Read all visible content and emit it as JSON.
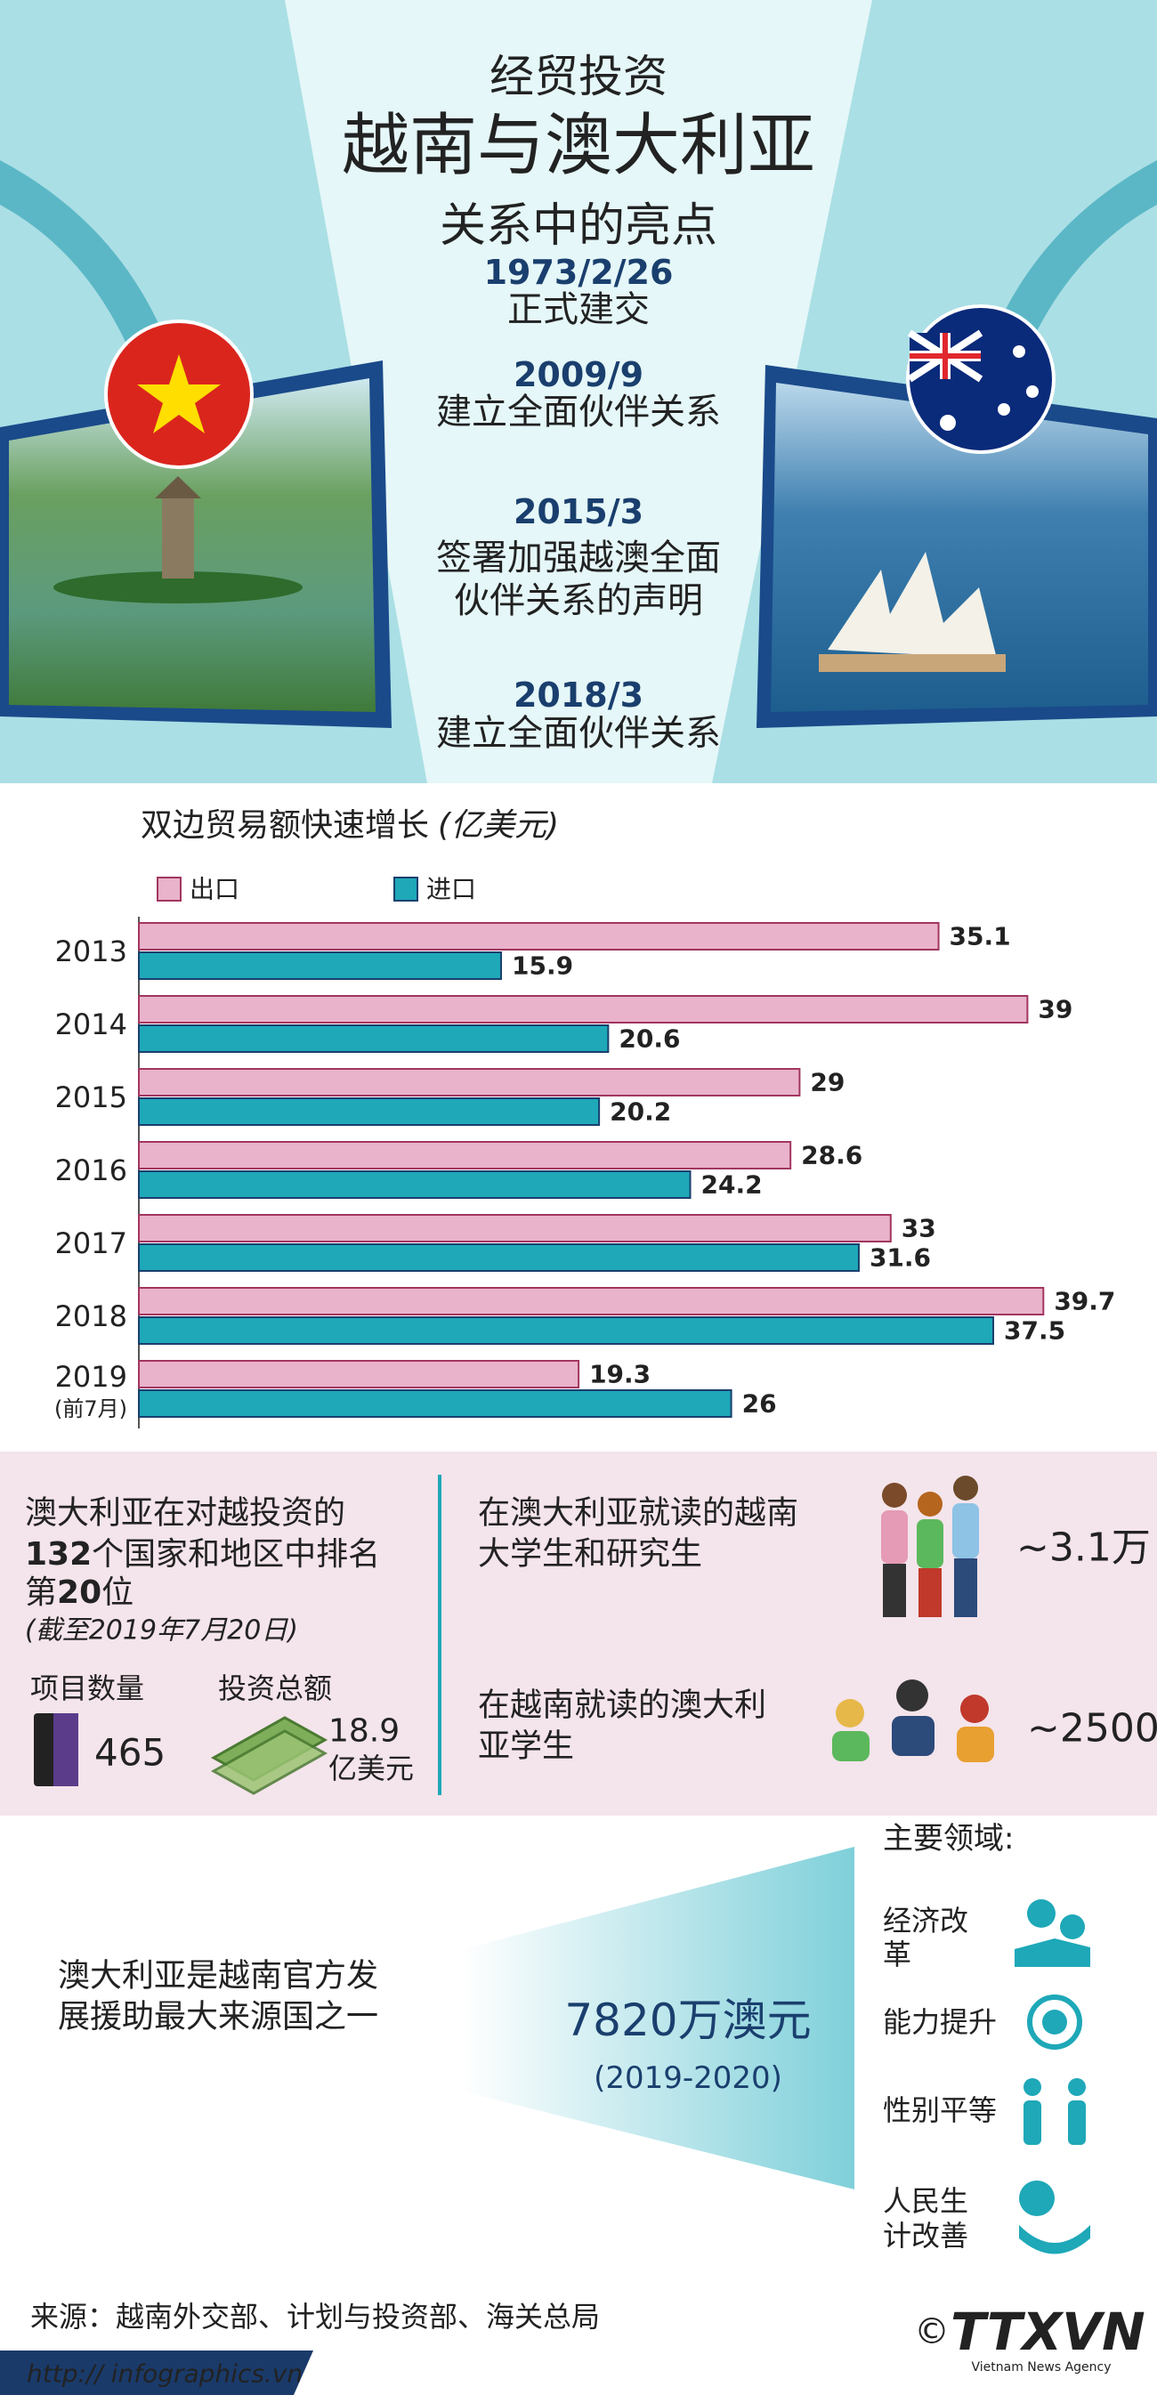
{
  "header": {
    "kicker": "经贸投资",
    "title": "越南与澳大利亚",
    "subtitle": "关系中的亮点"
  },
  "timeline": [
    {
      "date": "1973/2/26",
      "text": [
        "正式建交"
      ]
    },
    {
      "date": "2009/9",
      "text": [
        "建立全面伙伴关系"
      ]
    },
    {
      "date": "2015/3",
      "text": [
        "签署加强越澳全面",
        "伙伴关系的声明"
      ]
    },
    {
      "date": "2018/3",
      "text": [
        "建立全面伙伴关系"
      ]
    }
  ],
  "chart_data": {
    "type": "bar",
    "orientation": "horizontal",
    "title": "双边贸易额快速增长",
    "unit": "(亿美元)",
    "categories": [
      "2013",
      "2014",
      "2015",
      "2016",
      "2017",
      "2018",
      "2019\n(前7月)"
    ],
    "series": [
      {
        "name": "出口",
        "color": "#e9b3cb",
        "border": "#a2365f",
        "label_color": "#b5501e",
        "values": [
          35.1,
          39,
          29,
          28.6,
          33,
          39.7,
          19.3
        ]
      },
      {
        "name": "进口",
        "color": "#1ea8b8",
        "border": "#1a3f6e",
        "label_color": "#1a3f6e",
        "values": [
          15.9,
          20.6,
          20.2,
          24.2,
          31.6,
          37.5,
          26
        ]
      }
    ]
  },
  "investment": {
    "lines": [
      [
        "澳大利亚在对越投资的"
      ],
      [
        "132",
        "个国家和地区中排名"
      ],
      [
        "第",
        "20",
        "位"
      ]
    ],
    "note": "(截至2019年7月20日)",
    "projects_label": "项目数量",
    "projects_value": "465",
    "amount_label": "投资总额",
    "amount_value": "18.9",
    "amount_unit": "亿美元"
  },
  "students": [
    {
      "text": [
        "在澳大利亚就读的越南",
        "大学生和研究生"
      ],
      "value": "~3.1万"
    },
    {
      "text": [
        "在越南就读的澳大利",
        "亚学生"
      ],
      "value": "~2500"
    }
  ],
  "oda": {
    "text": [
      "澳大利亚是越南官方发",
      "展援助最大来源国之一"
    ],
    "amount": "7820万澳元",
    "period": "(2019-2020)",
    "areas_title": "主要领域:",
    "areas": [
      [
        "经济改",
        "革"
      ],
      [
        "能力提升"
      ],
      [
        "性别平等"
      ],
      [
        "人民生",
        "计改善"
      ]
    ]
  },
  "footer": {
    "source": "来源：越南外交部、计划与投资部、海关总局",
    "url": "http:// infographics.vn",
    "logo": "TTXVN",
    "agency": "Vietnam News Agency",
    "copyright": "©"
  }
}
